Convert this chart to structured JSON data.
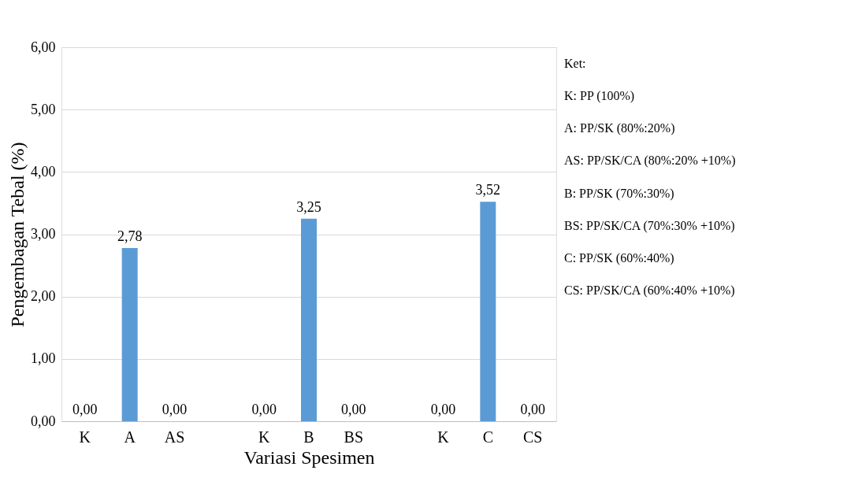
{
  "chart_data": {
    "type": "bar",
    "xlabel": "Variasi Spesimen",
    "ylabel": "Pengembagan Tebal (%)",
    "categories": [
      "K",
      "A",
      "AS",
      null,
      "K",
      "B",
      "BS",
      null,
      "K",
      "C",
      "CS"
    ],
    "values": [
      0,
      2.78,
      0,
      null,
      0,
      3.25,
      0,
      null,
      0,
      3.52,
      0
    ],
    "value_labels": [
      "0,00",
      "2,78",
      "0,00",
      null,
      "0,00",
      "3,25",
      "0,00",
      null,
      "0,00",
      "3,52",
      "0,00"
    ],
    "color": "#5b9bd5",
    "ylim": [
      0,
      6
    ],
    "yticks": [
      {
        "value": 0,
        "label": "0,00"
      },
      {
        "value": 1,
        "label": "1,00"
      },
      {
        "value": 2,
        "label": "2,00"
      },
      {
        "value": 3,
        "label": "3,00"
      },
      {
        "value": 4,
        "label": "4,00"
      },
      {
        "value": 5,
        "label": "5,00"
      },
      {
        "value": 6,
        "label": "6,00"
      }
    ],
    "grid": "y",
    "annotations": [
      "Ket:",
      "K: PP (100%)",
      "A: PP/SK (80%:20%)",
      "AS: PP/SK/CA (80%:20% +10%)",
      "B: PP/SK (70%:30%)",
      "BS: PP/SK/CA (70%:30% +10%)",
      "C: PP/SK (60%:40%)",
      "CS: PP/SK/CA (60%:40% +10%)"
    ]
  }
}
